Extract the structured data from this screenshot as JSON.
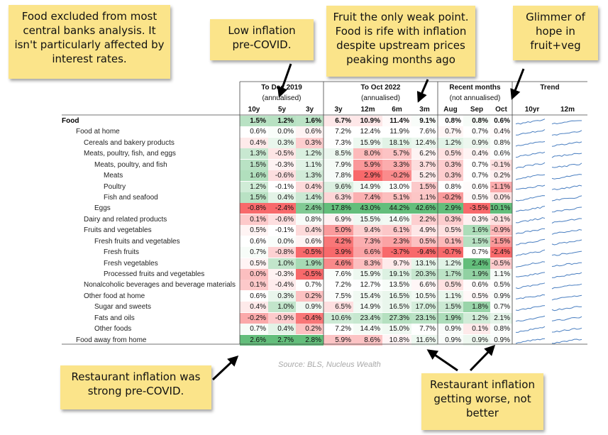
{
  "notes": [
    {
      "id": "note-food-excluded",
      "text": "Food excluded from most central banks analysis. It isn't particularly affected by interest rates."
    },
    {
      "id": "note-low-inflation",
      "text": "Low inflation pre-COVID."
    },
    {
      "id": "note-fruit-weak",
      "text": "Fruit the only weak point. Food is rife with inflation despite upstream prices peaking months ago"
    },
    {
      "id": "note-glimmer",
      "text": "Glimmer of hope in fruit+veg"
    },
    {
      "id": "note-restaurant-strong",
      "text": "Restaurant inflation was strong pre-COVID."
    },
    {
      "id": "note-restaurant-worse",
      "text": "Restaurant inflation getting worse, not better"
    }
  ],
  "source": "Source: BLS, Nucleus Wealth",
  "chart_data": {
    "type": "table",
    "groups": [
      {
        "title": "To Dec 2019",
        "subtitle": "(annualised)",
        "columns": [
          "10y",
          "5y",
          "3y"
        ]
      },
      {
        "title": "To Oct 2022",
        "subtitle": "(annualised)",
        "columns": [
          "3y",
          "12m",
          "6m",
          "3m"
        ]
      },
      {
        "title": "Recent months",
        "subtitle": "(not annualised)",
        "columns": [
          "Aug",
          "Sep",
          "Oct"
        ]
      },
      {
        "title": "Trend",
        "subtitle": "",
        "columns": [
          "10yr",
          "12m"
        ]
      }
    ],
    "rows": [
      {
        "label": "Food",
        "level": 0,
        "bold": true,
        "values": [
          "1.5%",
          "1.2%",
          "1.6%",
          "6.7%",
          "10.9%",
          "11.4%",
          "9.1%",
          "0.8%",
          "0.8%",
          "0.6%"
        ]
      },
      {
        "label": "Food at home",
        "level": 1,
        "bold": false,
        "values": [
          "0.6%",
          "0.0%",
          "0.6%",
          "7.2%",
          "12.4%",
          "11.9%",
          "7.6%",
          "0.7%",
          "0.7%",
          "0.4%"
        ]
      },
      {
        "label": "Cereals and bakery products",
        "level": 2,
        "bold": false,
        "values": [
          "0.4%",
          "0.3%",
          "0.3%",
          "7.3%",
          "15.9%",
          "18.1%",
          "12.4%",
          "1.2%",
          "0.9%",
          "0.8%"
        ]
      },
      {
        "label": "Meats, poultry, fish, and eggs",
        "level": 2,
        "bold": false,
        "values": [
          "1.3%",
          "-0.5%",
          "1.2%",
          "8.5%",
          "8.0%",
          "5.7%",
          "6.2%",
          "0.5%",
          "0.4%",
          "0.6%"
        ]
      },
      {
        "label": "Meats, poultry, and fish",
        "level": 3,
        "bold": false,
        "values": [
          "1.5%",
          "-0.3%",
          "1.1%",
          "7.9%",
          "5.9%",
          "3.3%",
          "3.7%",
          "0.3%",
          "0.7%",
          "-0.1%"
        ]
      },
      {
        "label": "Meats",
        "level": 4,
        "bold": false,
        "values": [
          "1.6%",
          "-0.6%",
          "1.3%",
          "7.8%",
          "2.9%",
          "-0.2%",
          "5.2%",
          "0.3%",
          "0.7%",
          "0.2%"
        ]
      },
      {
        "label": "Poultry",
        "level": 4,
        "bold": false,
        "values": [
          "1.2%",
          "-0.1%",
          "0.4%",
          "9.6%",
          "14.9%",
          "13.0%",
          "1.5%",
          "0.8%",
          "0.6%",
          "-1.1%"
        ]
      },
      {
        "label": "Fish and seafood",
        "level": 4,
        "bold": false,
        "values": [
          "1.5%",
          "0.4%",
          "1.4%",
          "6.3%",
          "7.4%",
          "5.1%",
          "1.1%",
          "-0.2%",
          "0.5%",
          "0.0%"
        ]
      },
      {
        "label": "Eggs",
        "level": 3,
        "bold": false,
        "values": [
          "-0.8%",
          "-2.4%",
          "2.4%",
          "17.8%",
          "43.0%",
          "44.2%",
          "42.6%",
          "2.9%",
          "-3.5%",
          "10.1%"
        ]
      },
      {
        "label": "Dairy and related products",
        "level": 2,
        "bold": false,
        "values": [
          "0.1%",
          "-0.6%",
          "0.8%",
          "6.9%",
          "15.5%",
          "14.6%",
          "2.2%",
          "0.3%",
          "0.3%",
          "-0.1%"
        ]
      },
      {
        "label": "Fruits and vegetables",
        "level": 2,
        "bold": false,
        "values": [
          "0.5%",
          "-0.1%",
          "0.4%",
          "5.0%",
          "9.4%",
          "6.1%",
          "4.9%",
          "0.5%",
          "1.6%",
          "-0.9%"
        ]
      },
      {
        "label": "Fresh fruits and vegetables",
        "level": 3,
        "bold": false,
        "values": [
          "0.6%",
          "0.0%",
          "0.6%",
          "4.2%",
          "7.3%",
          "2.3%",
          "0.5%",
          "0.1%",
          "1.5%",
          "-1.5%"
        ]
      },
      {
        "label": "Fresh fruits",
        "level": 4,
        "bold": false,
        "values": [
          "0.7%",
          "-0.8%",
          "-0.5%",
          "3.9%",
          "6.6%",
          "-3.7%",
          "-9.4%",
          "-0.7%",
          "0.7%",
          "-2.4%"
        ]
      },
      {
        "label": "Fresh vegetables",
        "level": 4,
        "bold": false,
        "values": [
          "0.5%",
          "1.0%",
          "1.9%",
          "4.6%",
          "8.3%",
          "9.7%",
          "13.1%",
          "1.2%",
          "2.4%",
          "-0.5%"
        ]
      },
      {
        "label": "Processed fruits and vegetables",
        "level": 4,
        "bold": false,
        "values": [
          "0.0%",
          "-0.3%",
          "-0.5%",
          "7.6%",
          "15.9%",
          "19.1%",
          "20.3%",
          "1.7%",
          "1.9%",
          "1.1%"
        ]
      },
      {
        "label": "Nonalcoholic beverages and beverage materials",
        "level": 2,
        "bold": false,
        "values": [
          "0.1%",
          "-0.4%",
          "0.7%",
          "7.2%",
          "12.7%",
          "13.5%",
          "6.6%",
          "0.5%",
          "0.6%",
          "0.5%"
        ]
      },
      {
        "label": "Other food at home",
        "level": 2,
        "bold": false,
        "values": [
          "0.6%",
          "0.3%",
          "0.2%",
          "7.5%",
          "15.4%",
          "16.5%",
          "10.5%",
          "1.1%",
          "0.5%",
          "0.9%"
        ]
      },
      {
        "label": "Sugar and sweets",
        "level": 3,
        "bold": false,
        "values": [
          "0.4%",
          "1.0%",
          "0.9%",
          "6.5%",
          "14.9%",
          "16.5%",
          "17.0%",
          "1.5%",
          "1.8%",
          "0.7%"
        ]
      },
      {
        "label": "Fats and oils",
        "level": 3,
        "bold": false,
        "values": [
          "-0.2%",
          "-0.9%",
          "-0.4%",
          "10.6%",
          "23.4%",
          "27.3%",
          "23.1%",
          "1.9%",
          "1.2%",
          "2.1%"
        ]
      },
      {
        "label": "Other foods",
        "level": 3,
        "bold": false,
        "values": [
          "0.7%",
          "0.4%",
          "0.2%",
          "7.2%",
          "14.4%",
          "15.0%",
          "7.7%",
          "0.9%",
          "0.1%",
          "0.8%"
        ]
      },
      {
        "label": "Food away from home",
        "level": 1,
        "bold": false,
        "values": [
          "2.6%",
          "2.7%",
          "2.8%",
          "5.9%",
          "8.6%",
          "10.8%",
          "11.6%",
          "0.9%",
          "0.9%",
          "0.9%"
        ]
      }
    ]
  },
  "colors": {
    "high": "#63be7b",
    "mid": "#ffffff",
    "low": "#f8696b",
    "note": "#fbe48a",
    "spark": "#4a7fc1"
  }
}
